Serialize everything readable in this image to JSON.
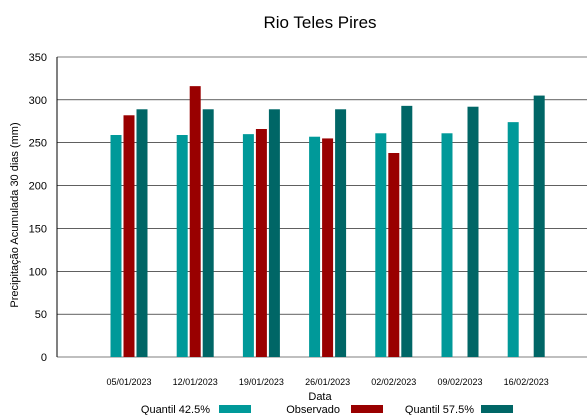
{
  "chart_data": {
    "type": "bar",
    "title": "Rio Teles Pires",
    "xlabel": "Data",
    "ylabel": "Precipitação Acumulada 30 dias (mm)",
    "ylim": [
      0,
      350
    ],
    "yticks": [
      "0",
      "50",
      "100",
      "150",
      "200",
      "250",
      "300",
      "350"
    ],
    "categories": [
      "05/01/2023",
      "12/01/2023",
      "19/01/2023",
      "26/01/2023",
      "02/02/2023",
      "09/02/2023",
      "16/02/2023"
    ],
    "series": [
      {
        "name": "Quantil 42.5%",
        "color": "#009999",
        "values": [
          259,
          259,
          260,
          257,
          261,
          261,
          274
        ]
      },
      {
        "name": "Observado",
        "color": "#990000",
        "values": [
          282,
          316,
          266,
          255,
          238,
          null,
          null
        ]
      },
      {
        "name": "Quantil 57.5%",
        "color": "#006666",
        "values": [
          289,
          289,
          289,
          289,
          293,
          292,
          305
        ]
      }
    ],
    "grid": true,
    "legend_position": "bottom"
  }
}
